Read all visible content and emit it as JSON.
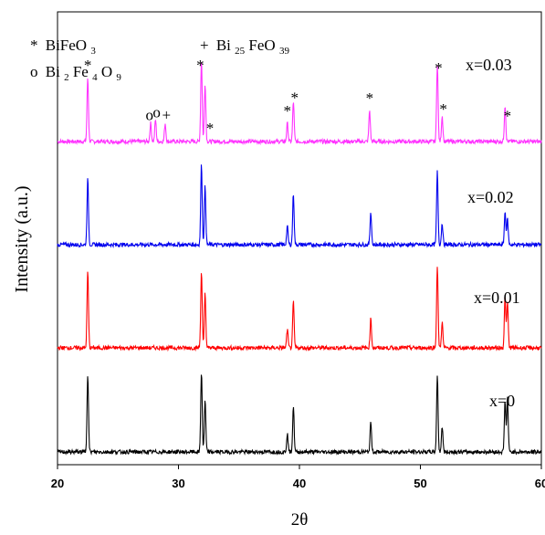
{
  "chart_data": {
    "type": "line",
    "xlabel": "2θ",
    "ylabel": "Intensity (a.u.)",
    "xlim": [
      20,
      60
    ],
    "x_ticks": [
      20,
      30,
      40,
      50,
      60
    ],
    "y_ticks_shown": false,
    "series": [
      {
        "name": "x=0.03",
        "color": "#ff33ff",
        "offset": 3,
        "peaks": [
          [
            22.5,
            0.35
          ],
          [
            27.7,
            0.1
          ],
          [
            28.1,
            0.12
          ],
          [
            28.9,
            0.1
          ],
          [
            31.9,
            0.45
          ],
          [
            32.2,
            0.32
          ],
          [
            39.0,
            0.1
          ],
          [
            39.5,
            0.22
          ],
          [
            45.8,
            0.17
          ],
          [
            51.4,
            0.43
          ],
          [
            51.8,
            0.14
          ],
          [
            57.0,
            0.2
          ]
        ]
      },
      {
        "name": "x=0.02",
        "color": "#0000ee",
        "offset": 2,
        "peaks": [
          [
            22.5,
            0.36
          ],
          [
            31.9,
            0.44
          ],
          [
            32.2,
            0.32
          ],
          [
            39.0,
            0.1
          ],
          [
            39.5,
            0.28
          ],
          [
            45.9,
            0.18
          ],
          [
            51.4,
            0.4
          ],
          [
            51.8,
            0.12
          ],
          [
            57.0,
            0.18
          ],
          [
            57.2,
            0.14
          ]
        ]
      },
      {
        "name": "x=0.01",
        "color": "#ff0000",
        "offset": 1,
        "peaks": [
          [
            22.5,
            0.42
          ],
          [
            31.9,
            0.42
          ],
          [
            32.2,
            0.3
          ],
          [
            39.0,
            0.1
          ],
          [
            39.5,
            0.25
          ],
          [
            45.9,
            0.16
          ],
          [
            51.4,
            0.45
          ],
          [
            51.8,
            0.14
          ],
          [
            57.0,
            0.28
          ],
          [
            57.2,
            0.25
          ]
        ]
      },
      {
        "name": "x=0",
        "color": "#000000",
        "offset": 0,
        "peaks": [
          [
            22.5,
            0.43
          ],
          [
            31.9,
            0.44
          ],
          [
            32.2,
            0.28
          ],
          [
            39.0,
            0.1
          ],
          [
            39.5,
            0.25
          ],
          [
            45.9,
            0.16
          ],
          [
            51.4,
            0.42
          ],
          [
            51.8,
            0.14
          ],
          [
            57.0,
            0.28
          ],
          [
            57.2,
            0.3
          ]
        ]
      }
    ],
    "legend": {
      "placement": "top-left",
      "entries": [
        {
          "marker": "*",
          "phase": "BiFeO",
          "sub": "3",
          "rest": ""
        },
        {
          "marker": "o",
          "phase": "Bi",
          "sub": "2",
          "rest": "Fe",
          "sub2": "4",
          "rest2": "O",
          "sub3": "9"
        },
        {
          "marker": "+",
          "phase": "Bi",
          "sub": "25",
          "rest": "FeO",
          "sub2": "39"
        }
      ]
    },
    "annotations": [
      {
        "text": "*",
        "x": 22.5
      },
      {
        "text": "o",
        "x": 27.6
      },
      {
        "text": "o",
        "x": 28.2
      },
      {
        "text": "+",
        "x": 29.0
      },
      {
        "text": "*",
        "x": 31.8
      },
      {
        "text": "*",
        "x": 32.6
      },
      {
        "text": "*",
        "x": 39.0
      },
      {
        "text": "*",
        "x": 39.6
      },
      {
        "text": "*",
        "x": 45.8
      },
      {
        "text": "*",
        "x": 51.5
      },
      {
        "text": "*",
        "x": 51.9
      },
      {
        "text": "*",
        "x": 57.2
      }
    ]
  }
}
